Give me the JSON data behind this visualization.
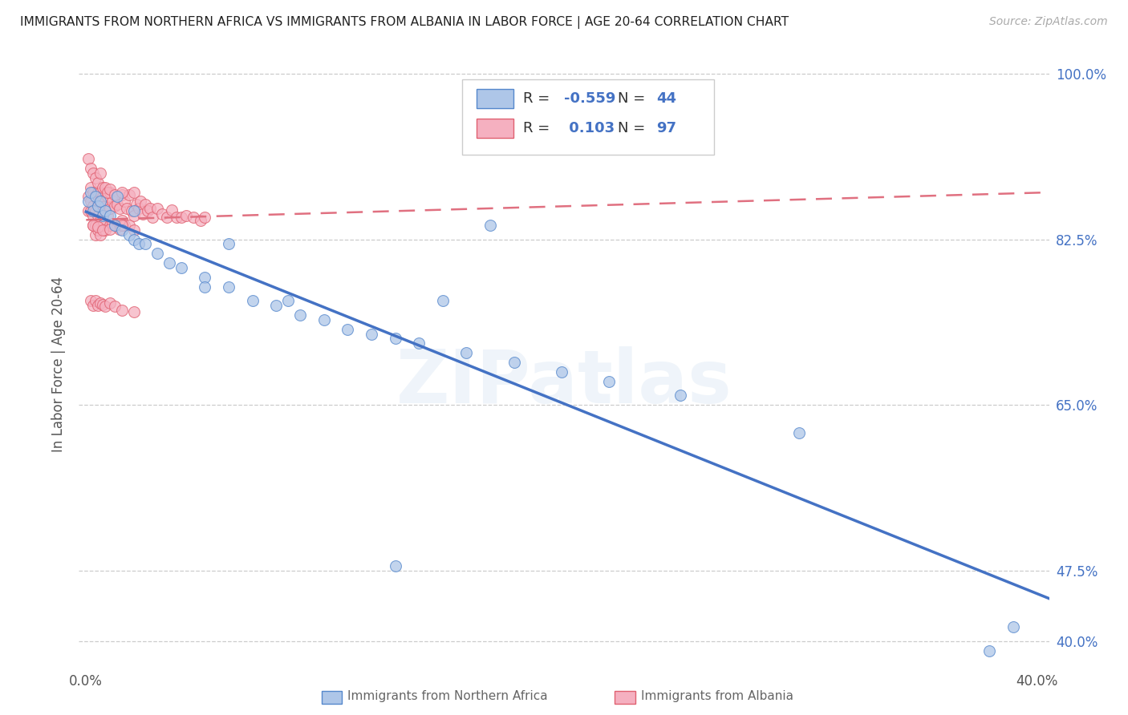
{
  "title": "IMMIGRANTS FROM NORTHERN AFRICA VS IMMIGRANTS FROM ALBANIA IN LABOR FORCE | AGE 20-64 CORRELATION CHART",
  "source": "Source: ZipAtlas.com",
  "ylabel": "In Labor Force | Age 20-64",
  "legend_label_blue": "Immigrants from Northern Africa",
  "legend_label_pink": "Immigrants from Albania",
  "blue_R": -0.559,
  "blue_N": 44,
  "pink_R": 0.103,
  "pink_N": 97,
  "xlim": [
    -0.003,
    0.405
  ],
  "ylim": [
    0.375,
    1.01
  ],
  "ytick_positions": [
    0.4,
    0.475,
    0.65,
    0.825,
    1.0
  ],
  "ytick_labels": [
    "40.0%",
    "47.5%",
    "65.0%",
    "82.5%",
    "100.0%"
  ],
  "xtick_positions": [
    0.0,
    0.4
  ],
  "xtick_labels": [
    "0.0%",
    "40.0%"
  ],
  "background_color": "#ffffff",
  "grid_color": "#cccccc",
  "blue_face_color": "#aec6e8",
  "blue_edge_color": "#5588cc",
  "blue_line_color": "#4472c4",
  "pink_face_color": "#f5b0c0",
  "pink_edge_color": "#e06070",
  "pink_line_color": "#e07080",
  "watermark": "ZIPatlas",
  "blue_x": [
    0.001,
    0.002,
    0.003,
    0.004,
    0.005,
    0.006,
    0.007,
    0.008,
    0.01,
    0.012,
    0.015,
    0.018,
    0.02,
    0.022,
    0.025,
    0.03,
    0.035,
    0.04,
    0.05,
    0.06,
    0.07,
    0.08,
    0.09,
    0.1,
    0.12,
    0.14,
    0.16,
    0.18,
    0.2,
    0.22,
    0.013,
    0.05,
    0.13,
    0.17,
    0.39,
    0.06,
    0.11,
    0.15,
    0.25,
    0.3,
    0.02,
    0.085,
    0.13,
    0.38
  ],
  "blue_y": [
    0.865,
    0.875,
    0.855,
    0.87,
    0.86,
    0.865,
    0.85,
    0.855,
    0.85,
    0.84,
    0.835,
    0.83,
    0.825,
    0.82,
    0.82,
    0.81,
    0.8,
    0.795,
    0.785,
    0.775,
    0.76,
    0.755,
    0.745,
    0.74,
    0.725,
    0.715,
    0.705,
    0.695,
    0.685,
    0.675,
    0.87,
    0.775,
    0.72,
    0.84,
    0.415,
    0.82,
    0.73,
    0.76,
    0.66,
    0.62,
    0.855,
    0.76,
    0.48,
    0.39
  ],
  "pink_x": [
    0.001,
    0.001,
    0.002,
    0.002,
    0.002,
    0.003,
    0.003,
    0.003,
    0.003,
    0.004,
    0.004,
    0.004,
    0.004,
    0.005,
    0.005,
    0.005,
    0.005,
    0.006,
    0.006,
    0.006,
    0.006,
    0.007,
    0.007,
    0.007,
    0.008,
    0.008,
    0.008,
    0.009,
    0.009,
    0.01,
    0.01,
    0.01,
    0.011,
    0.011,
    0.012,
    0.012,
    0.013,
    0.013,
    0.014,
    0.014,
    0.015,
    0.015,
    0.016,
    0.016,
    0.017,
    0.018,
    0.018,
    0.019,
    0.02,
    0.02,
    0.021,
    0.022,
    0.023,
    0.024,
    0.025,
    0.026,
    0.027,
    0.028,
    0.03,
    0.032,
    0.034,
    0.036,
    0.038,
    0.04,
    0.042,
    0.045,
    0.048,
    0.05,
    0.001,
    0.002,
    0.003,
    0.004,
    0.005,
    0.006,
    0.007,
    0.008,
    0.009,
    0.01,
    0.012,
    0.015,
    0.002,
    0.003,
    0.004,
    0.005,
    0.006,
    0.007,
    0.008,
    0.01,
    0.012,
    0.015,
    0.02,
    0.003,
    0.005,
    0.007,
    0.01,
    0.015,
    0.02
  ],
  "pink_y": [
    0.855,
    0.87,
    0.88,
    0.865,
    0.855,
    0.875,
    0.86,
    0.85,
    0.84,
    0.87,
    0.855,
    0.84,
    0.83,
    0.875,
    0.865,
    0.85,
    0.835,
    0.875,
    0.86,
    0.845,
    0.83,
    0.87,
    0.855,
    0.84,
    0.875,
    0.86,
    0.835,
    0.87,
    0.85,
    0.875,
    0.858,
    0.84,
    0.865,
    0.842,
    0.86,
    0.84,
    0.862,
    0.838,
    0.858,
    0.836,
    0.872,
    0.845,
    0.865,
    0.84,
    0.858,
    0.872,
    0.84,
    0.855,
    0.875,
    0.85,
    0.862,
    0.858,
    0.865,
    0.852,
    0.862,
    0.855,
    0.858,
    0.848,
    0.858,
    0.852,
    0.848,
    0.856,
    0.848,
    0.848,
    0.85,
    0.848,
    0.845,
    0.848,
    0.91,
    0.9,
    0.895,
    0.89,
    0.885,
    0.895,
    0.88,
    0.88,
    0.875,
    0.878,
    0.872,
    0.875,
    0.76,
    0.755,
    0.76,
    0.755,
    0.758,
    0.756,
    0.754,
    0.758,
    0.754,
    0.75,
    0.748,
    0.84,
    0.838,
    0.835,
    0.836,
    0.84,
    0.835
  ]
}
